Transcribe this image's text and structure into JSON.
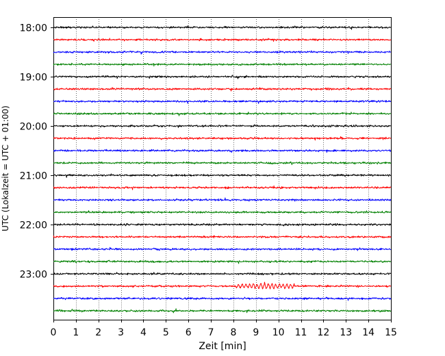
{
  "chart_data": {
    "type": "line",
    "title": "",
    "xlabel": "Zeit  [min]",
    "ylabel": "UTC (Lokalzeit = UTC + 01:00)",
    "xlim": [
      0,
      15
    ],
    "x_ticks": [
      "0",
      "1",
      "2",
      "3",
      "4",
      "5",
      "6",
      "7",
      "8",
      "9",
      "10",
      "11",
      "12",
      "13",
      "14",
      "15"
    ],
    "y_tick_labels": [
      "18:00",
      "19:00",
      "20:00",
      "21:00",
      "22:00",
      "23:00"
    ],
    "grid": "vertical dotted",
    "colors": [
      "#000000",
      "#ff0000",
      "#0000ff",
      "#008000"
    ],
    "traces": [
      {
        "start": "18:00",
        "color": "#000000",
        "noise": 1.0
      },
      {
        "start": "18:15",
        "color": "#ff0000",
        "noise": 1.0
      },
      {
        "start": "18:30",
        "color": "#0000ff",
        "noise": 1.0
      },
      {
        "start": "18:45",
        "color": "#008000",
        "noise": 1.0
      },
      {
        "start": "19:00",
        "color": "#000000",
        "noise": 1.0
      },
      {
        "start": "19:15",
        "color": "#ff0000",
        "noise": 1.0
      },
      {
        "start": "19:30",
        "color": "#0000ff",
        "noise": 1.0
      },
      {
        "start": "19:45",
        "color": "#008000",
        "noise": 1.0
      },
      {
        "start": "20:00",
        "color": "#000000",
        "noise": 1.0
      },
      {
        "start": "20:15",
        "color": "#ff0000",
        "noise": 1.0
      },
      {
        "start": "20:30",
        "color": "#0000ff",
        "noise": 1.0
      },
      {
        "start": "20:45",
        "color": "#008000",
        "noise": 1.0
      },
      {
        "start": "21:00",
        "color": "#000000",
        "noise": 1.0
      },
      {
        "start": "21:15",
        "color": "#ff0000",
        "noise": 1.0
      },
      {
        "start": "21:30",
        "color": "#0000ff",
        "noise": 1.0
      },
      {
        "start": "21:45",
        "color": "#008000",
        "noise": 1.0
      },
      {
        "start": "22:00",
        "color": "#000000",
        "noise": 1.0
      },
      {
        "start": "22:15",
        "color": "#ff0000",
        "noise": 1.0
      },
      {
        "start": "22:30",
        "color": "#0000ff",
        "noise": 1.0
      },
      {
        "start": "22:45",
        "color": "#008000",
        "noise": 1.0
      },
      {
        "start": "23:00",
        "color": "#000000",
        "noise": 1.0
      },
      {
        "start": "23:15",
        "color": "#ff0000",
        "noise": 1.0,
        "burst": {
          "x_start": 8.1,
          "x_end": 10.7,
          "amplitude": 4.0
        }
      },
      {
        "start": "23:30",
        "color": "#0000ff",
        "noise": 1.0
      },
      {
        "start": "23:45",
        "color": "#008000",
        "noise": 1.0
      }
    ]
  }
}
